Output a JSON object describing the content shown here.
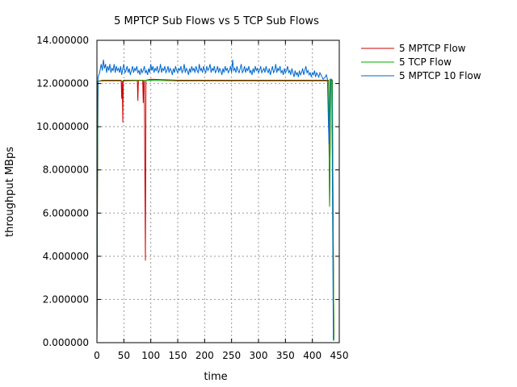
{
  "chart_data": {
    "type": "line",
    "title": "5 MPTCP Sub Flows vs 5 TCP Sub Flows",
    "xlabel": "time",
    "ylabel": "throughput MBps",
    "xlim": [
      0,
      450
    ],
    "ylim": [
      0,
      14
    ],
    "xticks": [
      0,
      50,
      100,
      150,
      200,
      250,
      300,
      350,
      400,
      450
    ],
    "yticks": [
      0,
      2,
      4,
      6,
      8,
      10,
      12,
      14
    ],
    "ytick_labels": [
      "0.000000",
      "2.000000",
      "4.000000",
      "6.000000",
      "8.000000",
      "10.000000",
      "12.000000",
      "14.000000"
    ],
    "grid": true,
    "legend_position": "top-right outside",
    "series": [
      {
        "name": "5 MPTCP Flow",
        "color": "#cc0000",
        "points": [
          [
            0,
            0
          ],
          [
            1,
            7.2
          ],
          [
            2,
            12.1
          ],
          [
            10,
            12.15
          ],
          [
            20,
            12.15
          ],
          [
            30,
            12.15
          ],
          [
            40,
            12.15
          ],
          [
            45,
            12.15
          ],
          [
            46,
            11.3
          ],
          [
            47,
            12.1
          ],
          [
            48,
            10.2
          ],
          [
            49,
            12.15
          ],
          [
            60,
            12.15
          ],
          [
            70,
            12.15
          ],
          [
            75,
            12.15
          ],
          [
            76,
            11.2
          ],
          [
            77,
            12.15
          ],
          [
            85,
            12.15
          ],
          [
            86,
            11.1
          ],
          [
            87,
            12.15
          ],
          [
            88,
            12.1
          ],
          [
            89,
            8.0
          ],
          [
            90,
            3.8
          ],
          [
            91,
            12.15
          ],
          [
            100,
            12.2
          ],
          [
            150,
            12.15
          ],
          [
            200,
            12.15
          ],
          [
            250,
            12.15
          ],
          [
            300,
            12.15
          ],
          [
            350,
            12.15
          ],
          [
            400,
            12.15
          ],
          [
            430,
            12.15
          ],
          [
            432,
            6.3
          ],
          [
            434,
            12.15
          ],
          [
            437,
            12.15
          ],
          [
            440,
            0.2
          ]
        ]
      },
      {
        "name": "5 TCP Flow",
        "color": "#00aa00",
        "points": [
          [
            0,
            0
          ],
          [
            1,
            7.2
          ],
          [
            2,
            12.1
          ],
          [
            10,
            12.12
          ],
          [
            50,
            12.12
          ],
          [
            100,
            12.15
          ],
          [
            150,
            12.12
          ],
          [
            200,
            12.12
          ],
          [
            250,
            12.12
          ],
          [
            300,
            12.12
          ],
          [
            350,
            12.12
          ],
          [
            400,
            12.12
          ],
          [
            430,
            12.12
          ],
          [
            432,
            6.3
          ],
          [
            434,
            12.15
          ],
          [
            437,
            12.15
          ],
          [
            438,
            8.0
          ],
          [
            440,
            0.1
          ]
        ]
      },
      {
        "name": "5 MPTCP 10 Flow",
        "color": "#0066cc",
        "points": [
          [
            0,
            0
          ],
          [
            1,
            10.0
          ],
          [
            2,
            12.3
          ],
          [
            5,
            12.5
          ],
          [
            8,
            12.9
          ],
          [
            10,
            12.6
          ],
          [
            12,
            13.1
          ],
          [
            14,
            12.7
          ],
          [
            16,
            12.9
          ],
          [
            18,
            12.5
          ],
          [
            20,
            12.8
          ],
          [
            22,
            12.6
          ],
          [
            24,
            12.9
          ],
          [
            26,
            12.5
          ],
          [
            28,
            12.7
          ],
          [
            30,
            12.6
          ],
          [
            32,
            12.9
          ],
          [
            34,
            12.5
          ],
          [
            36,
            12.8
          ],
          [
            38,
            12.6
          ],
          [
            40,
            12.7
          ],
          [
            42,
            12.5
          ],
          [
            44,
            12.8
          ],
          [
            46,
            12.4
          ],
          [
            48,
            12.7
          ],
          [
            50,
            12.9
          ],
          [
            52,
            12.5
          ],
          [
            54,
            12.6
          ],
          [
            56,
            12.8
          ],
          [
            58,
            12.5
          ],
          [
            60,
            12.7
          ],
          [
            62,
            12.4
          ],
          [
            64,
            12.6
          ],
          [
            66,
            12.8
          ],
          [
            68,
            12.5
          ],
          [
            70,
            12.7
          ],
          [
            72,
            12.6
          ],
          [
            74,
            12.8
          ],
          [
            76,
            12.5
          ],
          [
            78,
            12.6
          ],
          [
            80,
            12.4
          ],
          [
            82,
            12.7
          ],
          [
            84,
            12.5
          ],
          [
            86,
            12.6
          ],
          [
            88,
            12.8
          ],
          [
            90,
            12.5
          ],
          [
            92,
            12.6
          ],
          [
            94,
            12.4
          ],
          [
            96,
            12.7
          ],
          [
            98,
            12.5
          ],
          [
            100,
            12.9
          ],
          [
            102,
            12.6
          ],
          [
            104,
            12.8
          ],
          [
            106,
            12.5
          ],
          [
            108,
            12.7
          ],
          [
            110,
            12.6
          ],
          [
            112,
            12.8
          ],
          [
            114,
            12.5
          ],
          [
            116,
            12.6
          ],
          [
            118,
            12.9
          ],
          [
            120,
            12.5
          ],
          [
            122,
            12.7
          ],
          [
            124,
            12.6
          ],
          [
            126,
            12.8
          ],
          [
            128,
            12.5
          ],
          [
            130,
            12.6
          ],
          [
            132,
            12.8
          ],
          [
            134,
            12.5
          ],
          [
            136,
            12.7
          ],
          [
            138,
            12.6
          ],
          [
            140,
            12.4
          ],
          [
            142,
            12.7
          ],
          [
            144,
            12.5
          ],
          [
            146,
            12.8
          ],
          [
            148,
            12.6
          ],
          [
            150,
            12.5
          ],
          [
            152,
            12.7
          ],
          [
            154,
            12.6
          ],
          [
            156,
            12.8
          ],
          [
            158,
            12.5
          ],
          [
            160,
            12.6
          ],
          [
            162,
            12.9
          ],
          [
            164,
            12.5
          ],
          [
            166,
            12.7
          ],
          [
            168,
            12.6
          ],
          [
            170,
            12.4
          ],
          [
            172,
            12.7
          ],
          [
            174,
            12.5
          ],
          [
            176,
            12.8
          ],
          [
            178,
            12.6
          ],
          [
            180,
            12.7
          ],
          [
            182,
            12.5
          ],
          [
            184,
            12.8
          ],
          [
            186,
            12.6
          ],
          [
            188,
            12.5
          ],
          [
            190,
            12.9
          ],
          [
            192,
            12.6
          ],
          [
            194,
            12.7
          ],
          [
            196,
            12.5
          ],
          [
            198,
            12.8
          ],
          [
            200,
            12.6
          ],
          [
            202,
            12.5
          ],
          [
            204,
            12.8
          ],
          [
            206,
            12.6
          ],
          [
            208,
            12.7
          ],
          [
            210,
            12.9
          ],
          [
            212,
            12.5
          ],
          [
            214,
            12.7
          ],
          [
            216,
            12.6
          ],
          [
            218,
            12.8
          ],
          [
            220,
            12.5
          ],
          [
            222,
            12.6
          ],
          [
            224,
            12.8
          ],
          [
            226,
            12.5
          ],
          [
            228,
            12.7
          ],
          [
            230,
            12.6
          ],
          [
            232,
            12.4
          ],
          [
            234,
            12.7
          ],
          [
            236,
            12.5
          ],
          [
            238,
            12.8
          ],
          [
            240,
            12.6
          ],
          [
            242,
            12.7
          ],
          [
            244,
            12.5
          ],
          [
            246,
            12.6
          ],
          [
            248,
            12.8
          ],
          [
            250,
            12.5
          ],
          [
            252,
            13.1
          ],
          [
            254,
            12.6
          ],
          [
            256,
            12.7
          ],
          [
            258,
            12.5
          ],
          [
            260,
            12.8
          ],
          [
            262,
            12.6
          ],
          [
            264,
            12.5
          ],
          [
            266,
            12.7
          ],
          [
            268,
            12.9
          ],
          [
            270,
            12.5
          ],
          [
            272,
            12.6
          ],
          [
            274,
            12.8
          ],
          [
            276,
            12.5
          ],
          [
            278,
            12.7
          ],
          [
            280,
            12.6
          ],
          [
            282,
            12.8
          ],
          [
            284,
            12.5
          ],
          [
            286,
            12.6
          ],
          [
            288,
            12.4
          ],
          [
            290,
            12.7
          ],
          [
            292,
            12.5
          ],
          [
            294,
            12.8
          ],
          [
            296,
            12.6
          ],
          [
            298,
            12.7
          ],
          [
            300,
            12.5
          ],
          [
            302,
            12.6
          ],
          [
            304,
            12.8
          ],
          [
            306,
            12.5
          ],
          [
            308,
            12.6
          ],
          [
            310,
            12.7
          ],
          [
            312,
            12.5
          ],
          [
            314,
            12.8
          ],
          [
            316,
            12.6
          ],
          [
            318,
            12.5
          ],
          [
            320,
            12.7
          ],
          [
            322,
            12.4
          ],
          [
            324,
            12.6
          ],
          [
            326,
            12.8
          ],
          [
            328,
            12.5
          ],
          [
            330,
            12.6
          ],
          [
            332,
            12.9
          ],
          [
            334,
            12.5
          ],
          [
            336,
            12.7
          ],
          [
            338,
            12.6
          ],
          [
            340,
            12.8
          ],
          [
            342,
            12.5
          ],
          [
            344,
            12.6
          ],
          [
            346,
            12.4
          ],
          [
            348,
            12.7
          ],
          [
            350,
            12.5
          ],
          [
            352,
            12.6
          ],
          [
            354,
            12.8
          ],
          [
            356,
            12.5
          ],
          [
            358,
            12.6
          ],
          [
            360,
            12.4
          ],
          [
            362,
            12.7
          ],
          [
            364,
            12.5
          ],
          [
            366,
            12.3
          ],
          [
            368,
            12.6
          ],
          [
            370,
            12.4
          ],
          [
            372,
            12.5
          ],
          [
            374,
            12.3
          ],
          [
            376,
            12.6
          ],
          [
            378,
            12.4
          ],
          [
            380,
            12.5
          ],
          [
            382,
            12.7
          ],
          [
            384,
            12.4
          ],
          [
            386,
            12.6
          ],
          [
            388,
            12.8
          ],
          [
            390,
            12.5
          ],
          [
            392,
            12.6
          ],
          [
            394,
            12.4
          ],
          [
            396,
            12.5
          ],
          [
            398,
            12.3
          ],
          [
            400,
            12.5
          ],
          [
            402,
            12.4
          ],
          [
            404,
            12.6
          ],
          [
            406,
            12.3
          ],
          [
            408,
            12.5
          ],
          [
            410,
            12.4
          ],
          [
            412,
            12.3
          ],
          [
            414,
            12.5
          ],
          [
            416,
            12.4
          ],
          [
            418,
            12.3
          ],
          [
            420,
            12.2
          ],
          [
            424,
            12.3
          ],
          [
            426,
            12.4
          ],
          [
            428,
            12.2
          ],
          [
            430,
            10.0
          ],
          [
            431,
            9.2
          ],
          [
            433,
            12.2
          ],
          [
            436,
            12.2
          ],
          [
            437,
            8.5
          ],
          [
            439,
            0.1
          ]
        ]
      }
    ]
  }
}
